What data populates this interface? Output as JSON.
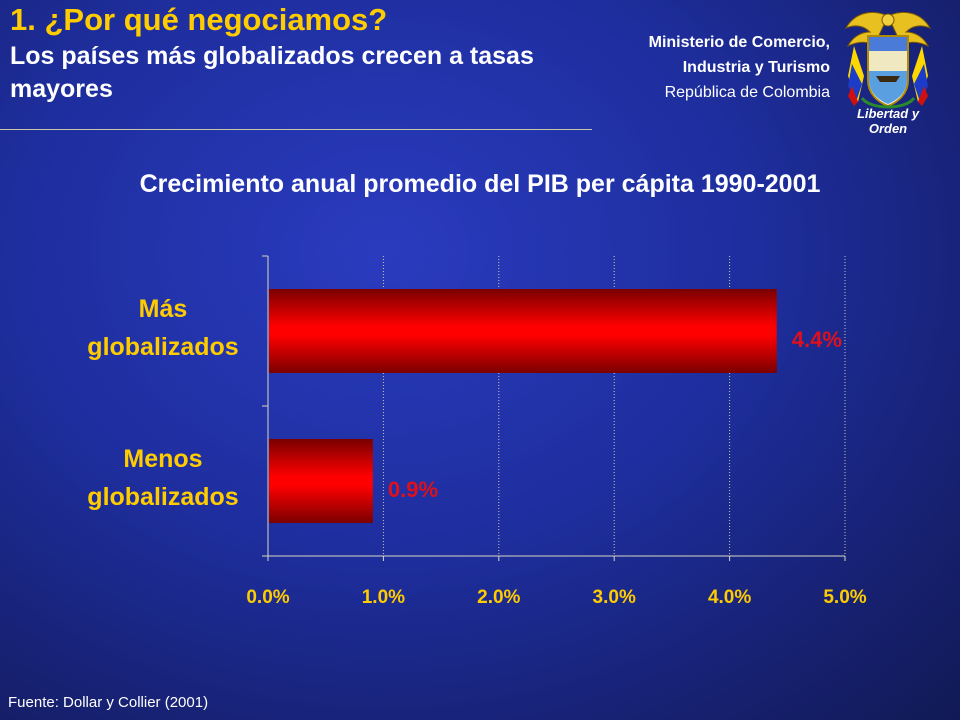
{
  "header": {
    "title": "1. ¿Por qué negociamos?",
    "subtitle": "Los países más globalizados crecen a tasas mayores"
  },
  "ministry": {
    "line1": "Ministerio de Comercio,",
    "line2": "Industria y Turismo",
    "line3": "República de Colombia"
  },
  "crest": {
    "motto": "Libertad y Orden",
    "icon": "colombia-coat-of-arms-icon"
  },
  "source": "Fuente: Dollar y Collier (2001)",
  "colors": {
    "title": "#ffcc00",
    "bar": "#ff0000",
    "bar_dark": "#7a0000",
    "data_label": "#e0101a",
    "category_label": "#ffcc00",
    "tick_label": "#ffcc00"
  },
  "chart_data": {
    "type": "bar",
    "orientation": "horizontal",
    "title": "Crecimiento anual promedio del PIB per cápita 1990-2001",
    "categories": [
      "Más globalizados",
      "Menos globalizados"
    ],
    "values": [
      4.4,
      0.9
    ],
    "data_labels": [
      "4.4%",
      "0.9%"
    ],
    "xlim": [
      0,
      5
    ],
    "xticks": [
      0,
      1,
      2,
      3,
      4,
      5
    ],
    "xtick_labels": [
      "0.0%",
      "1.0%",
      "2.0%",
      "3.0%",
      "4.0%",
      "5.0%"
    ],
    "xlabel": "",
    "ylabel": "",
    "grid": true,
    "legend": "none"
  }
}
